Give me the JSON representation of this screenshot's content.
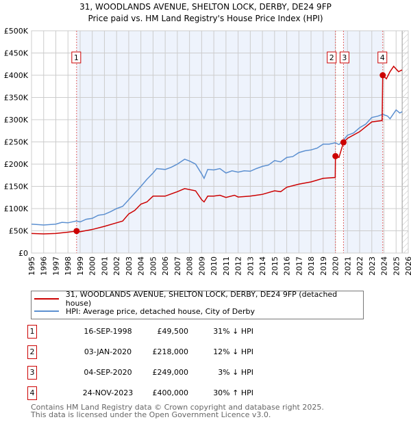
{
  "title": "31, WOODLANDS AVENUE, SHELTON LOCK, DERBY, DE24 9FP",
  "subtitle": "Price paid vs. HM Land Registry's House Price Index (HPI)",
  "colors": {
    "property": "#cc0000",
    "hpi": "#5b8fd0",
    "shade": "#eef3fc"
  },
  "chart_data": {
    "type": "line",
    "xlim": [
      1995,
      2026
    ],
    "ylim": [
      0,
      500000
    ],
    "xticks": [
      "1995",
      "1996",
      "1997",
      "1998",
      "1999",
      "2000",
      "2001",
      "2002",
      "2003",
      "2004",
      "2005",
      "2006",
      "2007",
      "2008",
      "2009",
      "2010",
      "2011",
      "2012",
      "2013",
      "2014",
      "2015",
      "2016",
      "2017",
      "2018",
      "2019",
      "2020",
      "2021",
      "2022",
      "2023",
      "2024",
      "2025",
      "2026"
    ],
    "yticks": [
      {
        "v": 0,
        "label": "£0"
      },
      {
        "v": 50000,
        "label": "£50K"
      },
      {
        "v": 100000,
        "label": "£100K"
      },
      {
        "v": 150000,
        "label": "£150K"
      },
      {
        "v": 200000,
        "label": "£200K"
      },
      {
        "v": 250000,
        "label": "£250K"
      },
      {
        "v": 300000,
        "label": "£300K"
      },
      {
        "v": 350000,
        "label": "£350K"
      },
      {
        "v": 400000,
        "label": "£400K"
      },
      {
        "v": 450000,
        "label": "£450K"
      },
      {
        "v": 500000,
        "label": "£500K"
      }
    ],
    "series": [
      {
        "name": "31, WOODLANDS AVENUE, SHELTON LOCK, DERBY, DE24 9FP (detached house)",
        "color": "#cc0000",
        "points": [
          [
            1995,
            44000
          ],
          [
            1996,
            43000
          ],
          [
            1997,
            44000
          ],
          [
            1998,
            47000
          ],
          [
            1998.71,
            49500
          ],
          [
            1999,
            48000
          ],
          [
            2000,
            53000
          ],
          [
            2001,
            60000
          ],
          [
            2002,
            68000
          ],
          [
            2002.5,
            72000
          ],
          [
            2003,
            88000
          ],
          [
            2003.5,
            96000
          ],
          [
            2004,
            110000
          ],
          [
            2004.5,
            115000
          ],
          [
            2005,
            128000
          ],
          [
            2006,
            128000
          ],
          [
            2007,
            138000
          ],
          [
            2007.6,
            145000
          ],
          [
            2008.5,
            140000
          ],
          [
            2009,
            120000
          ],
          [
            2009.2,
            115000
          ],
          [
            2009.5,
            128000
          ],
          [
            2010,
            128000
          ],
          [
            2010.5,
            130000
          ],
          [
            2011,
            125000
          ],
          [
            2011.7,
            130000
          ],
          [
            2012,
            126000
          ],
          [
            2013,
            128000
          ],
          [
            2014,
            132000
          ],
          [
            2015,
            140000
          ],
          [
            2015.5,
            138000
          ],
          [
            2016,
            148000
          ],
          [
            2017,
            155000
          ],
          [
            2018,
            160000
          ],
          [
            2019,
            168000
          ],
          [
            2019.99,
            170000
          ],
          [
            2020.01,
            218000
          ],
          [
            2020.3,
            215000
          ],
          [
            2020.67,
            249000
          ],
          [
            2021,
            258000
          ],
          [
            2022,
            273000
          ],
          [
            2023,
            295000
          ],
          [
            2023.85,
            298000
          ],
          [
            2023.9,
            400000
          ],
          [
            2024.2,
            392000
          ],
          [
            2024.5,
            408000
          ],
          [
            2024.8,
            420000
          ],
          [
            2025.2,
            408000
          ],
          [
            2025.5,
            412000
          ]
        ]
      },
      {
        "name": "HPI: Average price, detached house, City of Derby",
        "color": "#5b8fd0",
        "points": [
          [
            1995,
            65000
          ],
          [
            1996,
            63000
          ],
          [
            1997,
            65000
          ],
          [
            1997.5,
            69000
          ],
          [
            1998,
            68000
          ],
          [
            1998.7,
            72000
          ],
          [
            1999,
            70000
          ],
          [
            1999.5,
            76000
          ],
          [
            2000,
            78000
          ],
          [
            2000.5,
            85000
          ],
          [
            2001,
            87000
          ],
          [
            2001.5,
            93000
          ],
          [
            2002,
            100000
          ],
          [
            2002.5,
            105000
          ],
          [
            2003,
            120000
          ],
          [
            2003.5,
            135000
          ],
          [
            2004,
            150000
          ],
          [
            2004.5,
            166000
          ],
          [
            2005,
            180000
          ],
          [
            2005.3,
            190000
          ],
          [
            2006,
            188000
          ],
          [
            2006.5,
            193000
          ],
          [
            2007,
            200000
          ],
          [
            2007.6,
            211000
          ],
          [
            2008,
            207000
          ],
          [
            2008.5,
            200000
          ],
          [
            2009,
            178000
          ],
          [
            2009.2,
            168000
          ],
          [
            2009.5,
            188000
          ],
          [
            2010,
            187000
          ],
          [
            2010.5,
            190000
          ],
          [
            2011,
            180000
          ],
          [
            2011.5,
            185000
          ],
          [
            2012,
            182000
          ],
          [
            2012.5,
            185000
          ],
          [
            2013,
            184000
          ],
          [
            2013.5,
            190000
          ],
          [
            2014,
            195000
          ],
          [
            2014.5,
            198000
          ],
          [
            2015,
            208000
          ],
          [
            2015.5,
            205000
          ],
          [
            2016,
            215000
          ],
          [
            2016.5,
            217000
          ],
          [
            2017,
            226000
          ],
          [
            2017.5,
            230000
          ],
          [
            2018,
            232000
          ],
          [
            2018.5,
            236000
          ],
          [
            2019,
            245000
          ],
          [
            2019.5,
            245000
          ],
          [
            2020,
            248000
          ],
          [
            2020.3,
            244000
          ],
          [
            2020.7,
            255000
          ],
          [
            2021,
            265000
          ],
          [
            2021.5,
            270000
          ],
          [
            2022,
            282000
          ],
          [
            2022.5,
            290000
          ],
          [
            2023,
            305000
          ],
          [
            2023.5,
            308000
          ],
          [
            2023.9,
            312000
          ],
          [
            2024.3,
            308000
          ],
          [
            2024.5,
            302000
          ],
          [
            2025,
            322000
          ],
          [
            2025.3,
            315000
          ],
          [
            2025.5,
            318000
          ]
        ]
      }
    ],
    "sales": [
      {
        "label": "1",
        "x": 1998.71,
        "y": 49500
      },
      {
        "label": "2",
        "x": 2020.01,
        "y": 218000
      },
      {
        "label": "3",
        "x": 2020.67,
        "y": 249000
      },
      {
        "label": "4",
        "x": 2023.9,
        "y": 400000
      }
    ],
    "forecast_from": 2025.5
  },
  "legend": {
    "property": "31, WOODLANDS AVENUE, SHELTON LOCK, DERBY, DE24 9FP (detached house)",
    "hpi": "HPI: Average price, detached house, City of Derby"
  },
  "transactions": [
    {
      "num": "1",
      "date": "16-SEP-1998",
      "price": "£49,500",
      "hpi": "31% ↓ HPI"
    },
    {
      "num": "2",
      "date": "03-JAN-2020",
      "price": "£218,000",
      "hpi": "12% ↓ HPI"
    },
    {
      "num": "3",
      "date": "04-SEP-2020",
      "price": "£249,000",
      "hpi": "3% ↓ HPI"
    },
    {
      "num": "4",
      "date": "24-NOV-2023",
      "price": "£400,000",
      "hpi": "30% ↑ HPI"
    }
  ],
  "footer": [
    "Contains HM Land Registry data © Crown copyright and database right 2025.",
    "This data is licensed under the Open Government Licence v3.0."
  ]
}
